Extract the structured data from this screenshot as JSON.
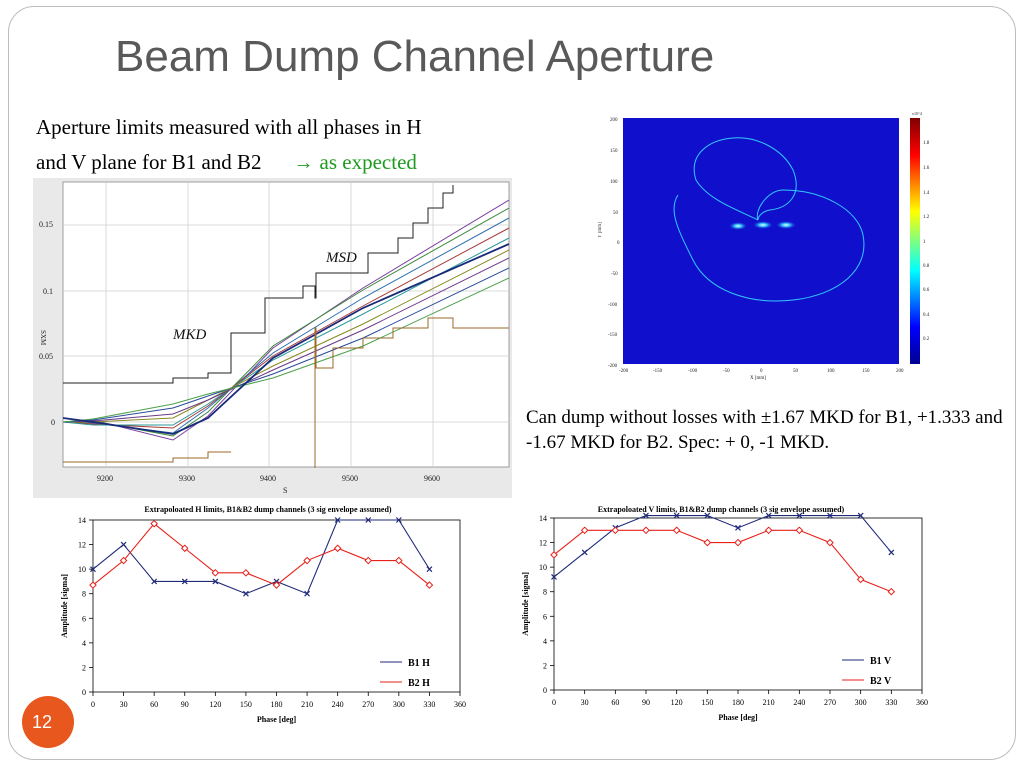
{
  "slide": {
    "title": "Beam Dump Channel Aperture",
    "intro_line1": "Aperture limits measured with all phases in H",
    "intro_line2": "and V plane for B1 and B2",
    "intro_arrow": "→",
    "intro_expected": "as expected",
    "caption": "Can dump without losses with ±1.67 MKD for B1, +1.333 and -1.67 MKD for B2. Spec: + 0, -1 MKD.",
    "page_number": "12",
    "accent_color": "#e8571d",
    "expected_color": "#1e9a1e"
  },
  "scope_plot": {
    "ylabel": "SXM",
    "xlabel": "S",
    "x_ticks": [
      "9200",
      "9300",
      "9400",
      "9500",
      "9600"
    ],
    "y_ticks": [
      "0",
      "0.05",
      "0.1",
      "0.15"
    ],
    "annotation_mkd": "MKD",
    "annotation_msd": "MSD"
  },
  "heatmap": {
    "xlabel": "X [mm]",
    "ylabel": "Y [mm]",
    "x_ticks": [
      "-200",
      "-150",
      "-100",
      "-50",
      "0",
      "50",
      "100",
      "150",
      "200"
    ],
    "y_ticks": [
      "200",
      "150",
      "100",
      "50",
      "0",
      "-50",
      "-100",
      "-150",
      "-200"
    ],
    "colorbar_ticks": [
      "1.8",
      "1.6",
      "1.4",
      "1.2",
      "1",
      "0.8",
      "0.6",
      "0.4",
      "0.2"
    ],
    "colorbar_exponent": "x10^4"
  },
  "chart_data": [
    {
      "type": "line",
      "title": "Extrapoloated H limits, B1&B2 dump channels (3 sig envelope assumed)",
      "xlabel": "Phase [deg]",
      "ylabel": "Amplitude [sigma]",
      "x": [
        0,
        30,
        60,
        90,
        120,
        150,
        180,
        210,
        240,
        270,
        300,
        330
      ],
      "xlim": [
        0,
        360
      ],
      "ylim": [
        0,
        14
      ],
      "x_ticks": [
        0,
        30,
        60,
        90,
        120,
        150,
        180,
        210,
        240,
        270,
        300,
        330,
        360
      ],
      "y_ticks": [
        0,
        2,
        4,
        6,
        8,
        10,
        12,
        14
      ],
      "legend_position": "bottom-right",
      "series": [
        {
          "name": "B1 H",
          "color": "#1f2a7a",
          "values": [
            10,
            12,
            9,
            9,
            9,
            8,
            9,
            8,
            14,
            14,
            14,
            10
          ]
        },
        {
          "name": "B2 H",
          "color": "#e8201a",
          "values": [
            8.7,
            10.7,
            13.7,
            11.7,
            9.7,
            9.7,
            8.7,
            10.7,
            11.7,
            10.7,
            10.7,
            8.7
          ]
        }
      ]
    },
    {
      "type": "line",
      "title": "Extrapoloated V limits, B1&B2 dump channels (3 sig envelope assumed)",
      "xlabel": "Phase [deg]",
      "ylabel": "Amplitude [sigma]",
      "x": [
        0,
        30,
        60,
        90,
        120,
        150,
        180,
        210,
        240,
        270,
        300,
        330
      ],
      "xlim": [
        0,
        360
      ],
      "ylim": [
        0,
        14
      ],
      "x_ticks": [
        0,
        30,
        60,
        90,
        120,
        150,
        180,
        210,
        240,
        270,
        300,
        330,
        360
      ],
      "y_ticks": [
        0,
        2,
        4,
        6,
        8,
        10,
        12,
        14
      ],
      "legend_position": "bottom-right",
      "series": [
        {
          "name": "B1 V",
          "color": "#1f2a7a",
          "values": [
            9.2,
            11.2,
            13.2,
            14.2,
            14.2,
            14.2,
            13.2,
            14.2,
            14.2,
            14.2,
            14.2,
            11.2
          ]
        },
        {
          "name": "B2 V",
          "color": "#e8201a",
          "values": [
            11,
            13,
            13,
            13,
            13,
            12,
            12,
            13,
            13,
            12,
            9,
            8
          ]
        }
      ]
    }
  ]
}
